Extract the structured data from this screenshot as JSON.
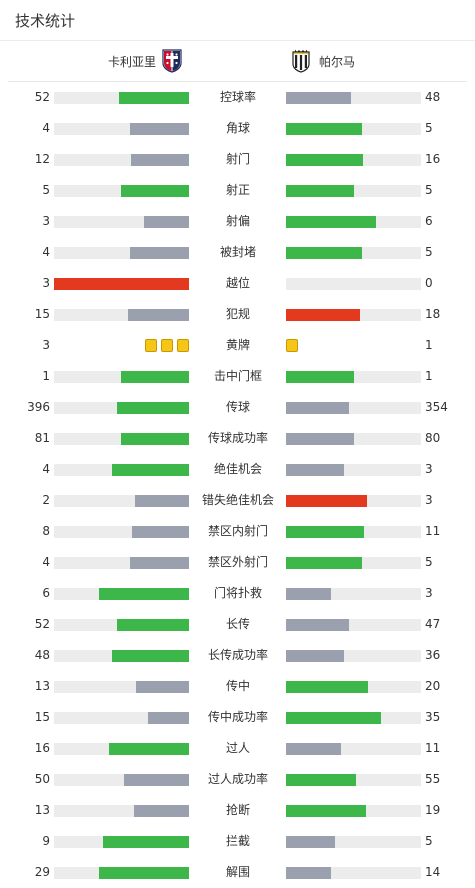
{
  "page": {
    "title": "技术统计"
  },
  "colors": {
    "green": "#3db64a",
    "gray": "#9aa0ad",
    "red": "#e3391f",
    "yellow": "#f5c518",
    "track": "#ececec"
  },
  "teams": {
    "home": {
      "name": "卡利亚里",
      "logo": "cagliari-crest-icon"
    },
    "away": {
      "name": "帕尔马",
      "logo": "parma-crest-icon"
    }
  },
  "stats": [
    {
      "label": "控球率",
      "home": 52,
      "away": 48,
      "home_fill": 0.52,
      "away_fill": 0.48,
      "home_color": "green",
      "away_color": "gray"
    },
    {
      "label": "角球",
      "home": 4,
      "away": 5,
      "home_fill": 0.44,
      "away_fill": 0.56,
      "home_color": "gray",
      "away_color": "green"
    },
    {
      "label": "射门",
      "home": 12,
      "away": 16,
      "home_fill": 0.43,
      "away_fill": 0.57,
      "home_color": "gray",
      "away_color": "green"
    },
    {
      "label": "射正",
      "home": 5,
      "away": 5,
      "home_fill": 0.5,
      "away_fill": 0.5,
      "home_color": "green",
      "away_color": "green"
    },
    {
      "label": "射偏",
      "home": 3,
      "away": 6,
      "home_fill": 0.33,
      "away_fill": 0.67,
      "home_color": "gray",
      "away_color": "green"
    },
    {
      "label": "被封堵",
      "home": 4,
      "away": 5,
      "home_fill": 0.44,
      "away_fill": 0.56,
      "home_color": "gray",
      "away_color": "green"
    },
    {
      "label": "越位",
      "home": 3,
      "away": 0,
      "home_fill": 1.0,
      "away_fill": 0.0,
      "home_color": "red",
      "away_color": "gray"
    },
    {
      "label": "犯规",
      "home": 15,
      "away": 18,
      "home_fill": 0.45,
      "away_fill": 0.55,
      "home_color": "gray",
      "away_color": "red"
    },
    {
      "label": "黄牌",
      "home": 3,
      "away": 1,
      "home_cards": 3,
      "away_cards": 1
    },
    {
      "label": "击中门框",
      "home": 1,
      "away": 1,
      "home_fill": 0.5,
      "away_fill": 0.5,
      "home_color": "green",
      "away_color": "green"
    },
    {
      "label": "传球",
      "home": 396,
      "away": 354,
      "home_fill": 0.53,
      "away_fill": 0.47,
      "home_color": "green",
      "away_color": "gray"
    },
    {
      "label": "传球成功率",
      "home": 81,
      "away": 80,
      "home_fill": 0.5,
      "away_fill": 0.5,
      "home_color": "green",
      "away_color": "gray"
    },
    {
      "label": "绝佳机会",
      "home": 4,
      "away": 3,
      "home_fill": 0.57,
      "away_fill": 0.43,
      "home_color": "green",
      "away_color": "gray"
    },
    {
      "label": "错失绝佳机会",
      "home": 2,
      "away": 3,
      "home_fill": 0.4,
      "away_fill": 0.6,
      "home_color": "gray",
      "away_color": "red"
    },
    {
      "label": "禁区内射门",
      "home": 8,
      "away": 11,
      "home_fill": 0.42,
      "away_fill": 0.58,
      "home_color": "gray",
      "away_color": "green"
    },
    {
      "label": "禁区外射门",
      "home": 4,
      "away": 5,
      "home_fill": 0.44,
      "away_fill": 0.56,
      "home_color": "gray",
      "away_color": "green"
    },
    {
      "label": "门将扑救",
      "home": 6,
      "away": 3,
      "home_fill": 0.67,
      "away_fill": 0.33,
      "home_color": "green",
      "away_color": "gray"
    },
    {
      "label": "长传",
      "home": 52,
      "away": 47,
      "home_fill": 0.53,
      "away_fill": 0.47,
      "home_color": "green",
      "away_color": "gray"
    },
    {
      "label": "长传成功率",
      "home": 48,
      "away": 36,
      "home_fill": 0.57,
      "away_fill": 0.43,
      "home_color": "green",
      "away_color": "gray"
    },
    {
      "label": "传中",
      "home": 13,
      "away": 20,
      "home_fill": 0.39,
      "away_fill": 0.61,
      "home_color": "gray",
      "away_color": "green"
    },
    {
      "label": "传中成功率",
      "home": 15,
      "away": 35,
      "home_fill": 0.3,
      "away_fill": 0.7,
      "home_color": "gray",
      "away_color": "green"
    },
    {
      "label": "过人",
      "home": 16,
      "away": 11,
      "home_fill": 0.59,
      "away_fill": 0.41,
      "home_color": "green",
      "away_color": "gray"
    },
    {
      "label": "过人成功率",
      "home": 50,
      "away": 55,
      "home_fill": 0.48,
      "away_fill": 0.52,
      "home_color": "gray",
      "away_color": "green"
    },
    {
      "label": "抢断",
      "home": 13,
      "away": 19,
      "home_fill": 0.41,
      "away_fill": 0.59,
      "home_color": "gray",
      "away_color": "green"
    },
    {
      "label": "拦截",
      "home": 9,
      "away": 5,
      "home_fill": 0.64,
      "away_fill": 0.36,
      "home_color": "green",
      "away_color": "gray"
    },
    {
      "label": "解围",
      "home": 29,
      "away": 14,
      "home_fill": 0.67,
      "away_fill": 0.33,
      "home_color": "green",
      "away_color": "gray"
    }
  ]
}
